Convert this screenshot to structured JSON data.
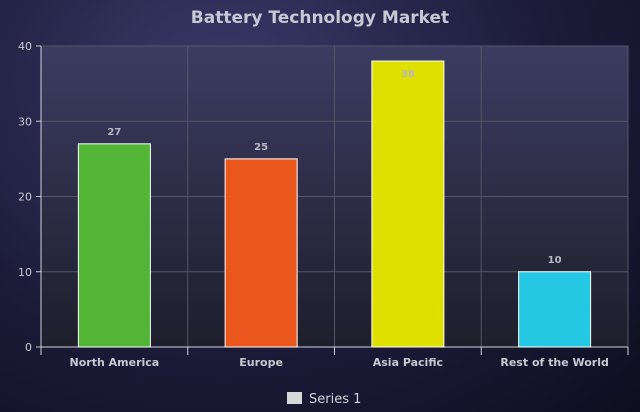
{
  "chart_data": {
    "type": "bar",
    "title": "Battery Technology Market",
    "xlabel": "",
    "ylabel": "",
    "categories": [
      "North America",
      "Europe",
      "Asia Pacific",
      "Rest of the World"
    ],
    "series": [
      {
        "name": "Series 1",
        "values": [
          27,
          25,
          38,
          10
        ],
        "colors": [
          "#52b535",
          "#ea561b",
          "#dfe000",
          "#25c8e3"
        ]
      }
    ],
    "ylim": [
      0,
      40
    ],
    "yticks": [
      "0",
      "10",
      "20",
      "30",
      "40"
    ],
    "grid": true,
    "legend_position": "bottom",
    "data_labels": [
      "27",
      "25",
      "38",
      "10"
    ]
  },
  "theme": {
    "plot_bg_top": "#3c3c62",
    "plot_bg_bottom": "#1e1e2c",
    "grid_color": "#555566",
    "bar_border": "#ffffff",
    "legend_swatch": "#d8d8d8"
  }
}
